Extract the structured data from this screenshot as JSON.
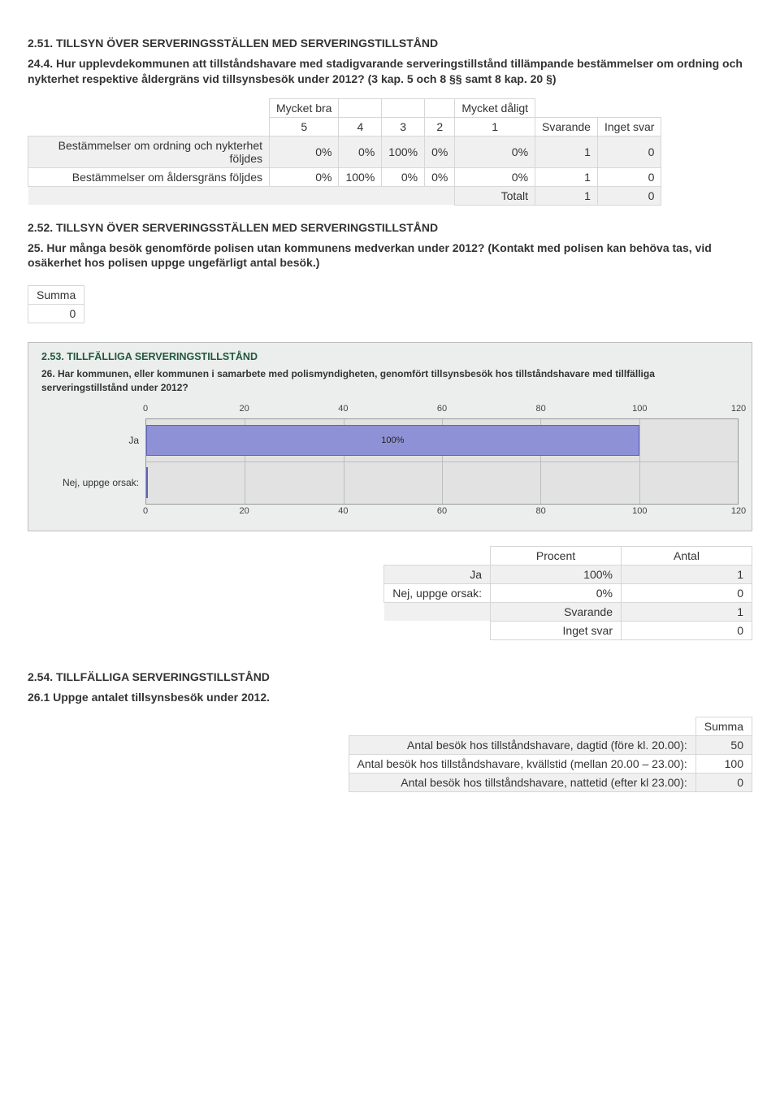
{
  "sec251": {
    "title": "2.51. TILLSYN ÖVER SERVERINGSSTÄLLEN MED SERVERINGSTILLSTÅND",
    "question": "24.4. Hur upplevdekommunen att tillståndshavare med stadigvarande serveringstillstånd tillämpande bestämmelser om ordning och nykterhet respektive åldergräns vid tillsynsbesök under 2012? (3 kap. 5 och 8 §§ samt 8 kap. 20 §)",
    "table": {
      "scale_left": "Mycket bra",
      "scale_right": "Mycket dåligt",
      "cols": [
        "5",
        "4",
        "3",
        "2",
        "1",
        "Svarande",
        "Inget svar"
      ],
      "rows": [
        {
          "label": "Bestämmelser om ordning och nykterhet följdes",
          "vals": [
            "0%",
            "0%",
            "100%",
            "0%",
            "0%",
            "1",
            "0"
          ]
        },
        {
          "label": "Bestämmelser om åldersgräns följdes",
          "vals": [
            "0%",
            "100%",
            "0%",
            "0%",
            "0%",
            "1",
            "0"
          ]
        }
      ],
      "totalt_label": "Totalt",
      "totalt_vals": [
        "1",
        "0"
      ]
    }
  },
  "sec252": {
    "title": "2.52. TILLSYN ÖVER SERVERINGSSTÄLLEN MED SERVERINGSTILLSTÅND",
    "question": "25. Hur många besök genomförde polisen utan kommunens medverkan under 2012? (Kontakt med polisen kan behöva tas, vid osäkerhet hos polisen uppge ungefärligt antal besök.)",
    "summa_label": "Summa",
    "summa_value": "0"
  },
  "chart253": {
    "title": "2.53. TILLFÄLLIGA SERVERINGSTILLSTÅND",
    "question": "26. Har kommunen, eller kommunen i samarbete med polismyndigheten, genomfört tillsynsbesök hos tillståndshavare med tillfälliga serveringstillstånd under 2012?",
    "type": "bar-horizontal",
    "xmin": 0,
    "xmax": 120,
    "xtick_step": 20,
    "categories": [
      "Ja",
      "Nej, uppge orsak:"
    ],
    "values": [
      100,
      0
    ],
    "bar_label": [
      "100%",
      ""
    ],
    "bar_color": "#8f91d6",
    "bar_border": "#5f62bd",
    "plot_bg": "#e2e2e2",
    "grid_color": "#bdbdbd",
    "box_bg": "#eceded",
    "box_border": "#bfbfbf",
    "ticks": [
      "0",
      "20",
      "40",
      "60",
      "80",
      "100",
      "120"
    ]
  },
  "table253": {
    "headers": [
      "Procent",
      "Antal"
    ],
    "rows": [
      {
        "label": "Ja",
        "procent": "100%",
        "antal": "1"
      },
      {
        "label": "Nej, uppge orsak:",
        "procent": "0%",
        "antal": "0"
      }
    ],
    "svarande_label": "Svarande",
    "svarande_val": "1",
    "inget_label": "Inget svar",
    "inget_val": "0"
  },
  "sec254": {
    "title": "2.54. TILLFÄLLIGA SERVERINGSTILLSTÅND",
    "question": "26.1 Uppge antalet tillsynsbesök under 2012.",
    "summa_label": "Summa",
    "rows": [
      {
        "label": "Antal besök hos tillståndshavare, dagtid (före kl. 20.00):",
        "val": "50"
      },
      {
        "label": "Antal besök hos tillståndshavare, kvällstid (mellan 20.00 – 23.00):",
        "val": "100"
      },
      {
        "label": "Antal besök hos tillståndshavare, nattetid (efter kl 23.00):",
        "val": "0"
      }
    ]
  }
}
